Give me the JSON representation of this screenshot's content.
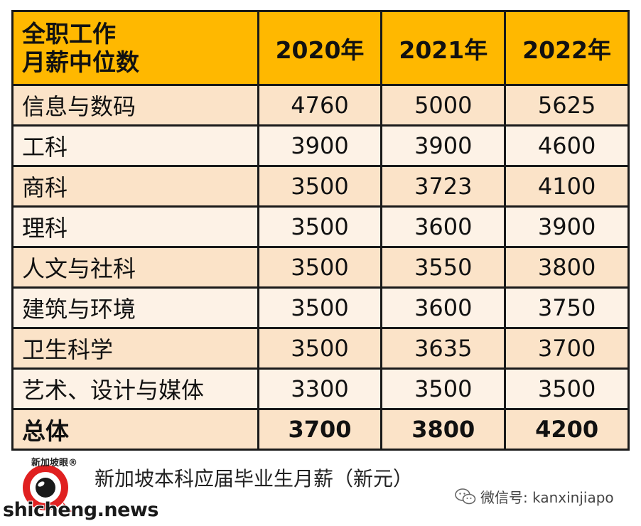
{
  "table": {
    "header_label_line1": "全职工作",
    "header_label_line2": "月薪中位数",
    "years": [
      "2020年",
      "2021年",
      "2022年"
    ],
    "rows": [
      {
        "category": "信息与数码",
        "values": [
          "4760",
          "5000",
          "5625"
        ]
      },
      {
        "category": "工科",
        "values": [
          "3900",
          "3900",
          "4600"
        ]
      },
      {
        "category": "商科",
        "values": [
          "3500",
          "3723",
          "4100"
        ]
      },
      {
        "category": "理科",
        "values": [
          "3500",
          "3600",
          "3900"
        ]
      },
      {
        "category": "人文与社科",
        "values": [
          "3500",
          "3550",
          "3800"
        ]
      },
      {
        "category": "建筑与环境",
        "values": [
          "3500",
          "3600",
          "3750"
        ]
      },
      {
        "category": "卫生科学",
        "values": [
          "3500",
          "3635",
          "3700"
        ]
      },
      {
        "category": "艺术、设计与媒体",
        "values": [
          "3300",
          "3500",
          "3500"
        ]
      }
    ],
    "total": {
      "category": "总体",
      "values": [
        "3700",
        "3800",
        "4200"
      ]
    }
  },
  "caption": "新加坡本科应届毕业生月薪（新元）",
  "logo_text": "新加坡眼®",
  "site_watermark": "shicheng.news",
  "wechat_label": "微信号: kanxinjiapo",
  "colors": {
    "header_bg": "#ffb800",
    "row_odd_bg": "#fbe3c8",
    "row_even_bg": "#fdf2e6",
    "border": "#1a1a1a",
    "logo_red": "#e02020"
  }
}
